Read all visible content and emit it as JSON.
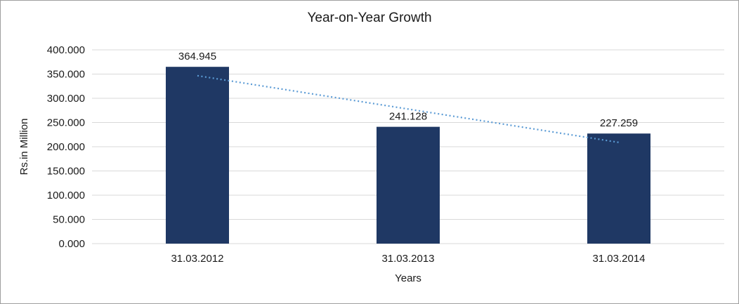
{
  "chart_data": {
    "type": "bar",
    "title": "Year-on-Year Growth",
    "xlabel": "Years",
    "ylabel": "Rs.in Million",
    "categories": [
      "31.03.2012",
      "31.03.2013",
      "31.03.2014"
    ],
    "values": [
      364.945,
      241.128,
      227.259
    ],
    "data_labels": [
      "364.945",
      "241.128",
      "227.259"
    ],
    "ylim": [
      0,
      400
    ],
    "yticks": [
      0,
      50,
      100,
      150,
      200,
      250,
      300,
      350,
      400
    ],
    "ytick_labels": [
      "0.000",
      "50.000",
      "100.000",
      "150.000",
      "200.000",
      "250.000",
      "300.000",
      "350.000",
      "400.000"
    ],
    "grid": true,
    "legend_position": "none",
    "bar_color": "#1F3864",
    "gridline_color": "#d9d9d9",
    "trendline": {
      "kind": "linear",
      "style": "dotted",
      "color": "#5B9BD5"
    }
  }
}
